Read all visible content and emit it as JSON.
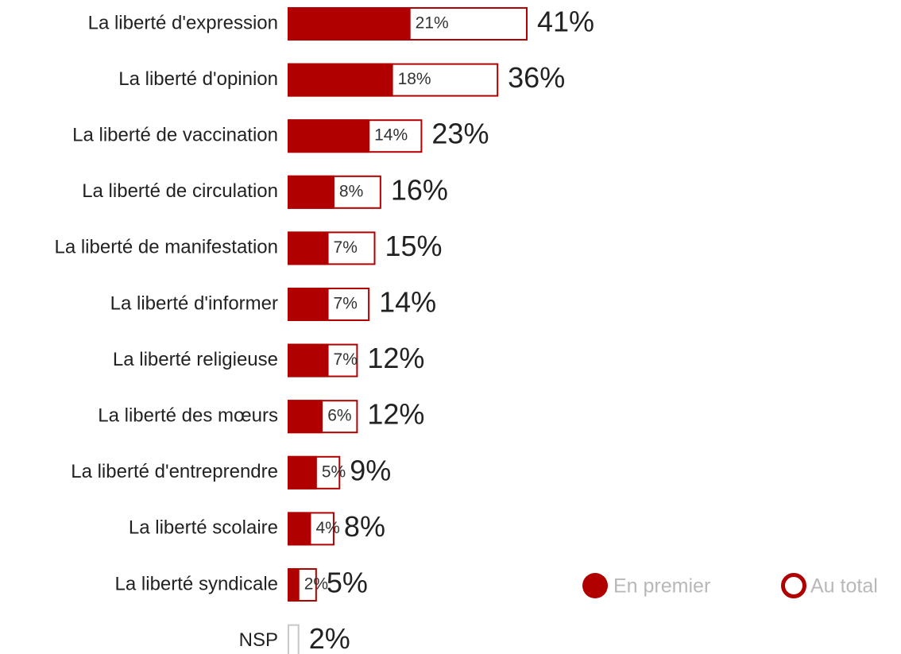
{
  "chart_data": {
    "type": "bar",
    "categories": [
      "La liberté d'expression",
      "La liberté d'opinion",
      "La liberté de vaccination",
      "La liberté de circulation",
      "La liberté de manifestation",
      "La liberté d'informer",
      "La liberté religieuse",
      "La liberté des mœurs",
      "La liberté d'entreprendre",
      "La liberté scolaire",
      "La liberté syndicale",
      "NSP"
    ],
    "series": [
      {
        "name": "En premier",
        "color": "#b00000",
        "values": [
          21,
          18,
          14,
          8,
          7,
          7,
          7,
          6,
          5,
          4,
          2,
          null
        ],
        "value_labels": [
          "21%",
          "18%",
          "14%",
          "8%",
          "7%",
          "7%",
          "7%",
          "6%",
          "5%",
          "4%",
          "2%",
          null
        ]
      },
      {
        "name": "Au total",
        "color": "#b00000",
        "values": [
          41,
          36,
          23,
          16,
          15,
          14,
          12,
          12,
          9,
          8,
          5,
          2
        ],
        "value_labels": [
          "41%",
          "36%",
          "23%",
          "16%",
          "15%",
          "14%",
          "12%",
          "12%",
          "9%",
          "8%",
          "5%",
          "2%"
        ]
      }
    ],
    "nsp_color": "#c8c8c8"
  }
}
